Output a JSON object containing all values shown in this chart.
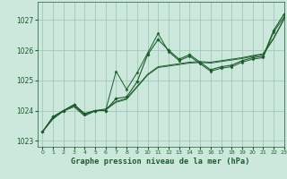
{
  "title": "Graphe pression niveau de la mer (hPa)",
  "bg_color": "#cce8dc",
  "grid_color": "#a0c8b8",
  "line_color": "#1a5c2a",
  "marker_color": "#1a5c2a",
  "xlim": [
    -0.5,
    23
  ],
  "ylim": [
    1022.8,
    1027.6
  ],
  "yticks": [
    1023,
    1024,
    1025,
    1026,
    1027
  ],
  "xticks": [
    0,
    1,
    2,
    3,
    4,
    5,
    6,
    7,
    8,
    9,
    10,
    11,
    12,
    13,
    14,
    15,
    16,
    17,
    18,
    19,
    20,
    21,
    22,
    23
  ],
  "series1": [
    1023.3,
    1023.8,
    1024.0,
    1024.2,
    1023.9,
    1024.0,
    1024.0,
    1024.4,
    1024.45,
    1024.95,
    1025.85,
    1026.35,
    1026.0,
    1025.7,
    1025.85,
    1025.6,
    1025.35,
    1025.45,
    1025.5,
    1025.65,
    1025.75,
    1025.8,
    1026.65,
    1027.2
  ],
  "series2_nomarker": [
    1023.3,
    1023.75,
    1024.0,
    1024.15,
    1023.85,
    1024.0,
    1024.05,
    1024.3,
    1024.4,
    1024.8,
    1025.2,
    1025.45,
    1025.5,
    1025.55,
    1025.6,
    1025.62,
    1025.6,
    1025.65,
    1025.7,
    1025.75,
    1025.82,
    1025.88,
    1026.4,
    1027.05
  ],
  "series3_nomarker": [
    1023.3,
    1023.72,
    1023.98,
    1024.12,
    1023.82,
    1023.98,
    1024.02,
    1024.27,
    1024.37,
    1024.77,
    1025.17,
    1025.42,
    1025.47,
    1025.52,
    1025.57,
    1025.59,
    1025.57,
    1025.62,
    1025.67,
    1025.72,
    1025.79,
    1025.85,
    1026.37,
    1027.02
  ],
  "series4_spike": [
    1023.3,
    1023.78,
    1024.0,
    1024.18,
    1023.88,
    1024.0,
    1024.0,
    1025.3,
    1024.7,
    1025.25,
    1025.9,
    1026.55,
    1025.95,
    1025.65,
    1025.8,
    1025.55,
    1025.3,
    1025.4,
    1025.45,
    1025.6,
    1025.7,
    1025.75,
    1026.6,
    1027.1
  ]
}
